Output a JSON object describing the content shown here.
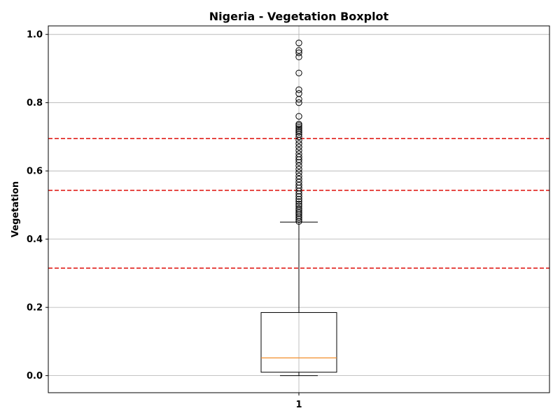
{
  "chart_data": {
    "type": "boxplot",
    "title": "Nigeria - Vegetation Boxplot",
    "xlabel": "",
    "ylabel": "Vegetation",
    "categories": [
      "1"
    ],
    "ylim": [
      -0.05,
      1.025
    ],
    "yticks": [
      0.0,
      0.2,
      0.4,
      0.6,
      0.8,
      1.0
    ],
    "ytick_labels": [
      "0.0",
      "0.2",
      "0.4",
      "0.6",
      "0.8",
      "1.0"
    ],
    "grid": true,
    "box": {
      "whisker_low": 0.0,
      "q1": 0.01,
      "median": 0.052,
      "q3": 0.185,
      "whisker_high": 0.45
    },
    "outliers": [
      0.452,
      0.458,
      0.463,
      0.468,
      0.474,
      0.479,
      0.485,
      0.49,
      0.497,
      0.503,
      0.51,
      0.517,
      0.525,
      0.533,
      0.541,
      0.55,
      0.558,
      0.567,
      0.576,
      0.585,
      0.595,
      0.605,
      0.615,
      0.625,
      0.633,
      0.641,
      0.65,
      0.66,
      0.67,
      0.68,
      0.69,
      0.7,
      0.707,
      0.713,
      0.718,
      0.723,
      0.728,
      0.733,
      0.737,
      0.76,
      0.8,
      0.81,
      0.827,
      0.838,
      0.887,
      0.934,
      0.946,
      0.953,
      0.975
    ],
    "reference_lines": [
      {
        "y": 0.315,
        "color": "#e0201c",
        "style": "dashed"
      },
      {
        "y": 0.543,
        "color": "#e0201c",
        "style": "dashed"
      },
      {
        "y": 0.695,
        "color": "#e0201c",
        "style": "dashed"
      }
    ],
    "colors": {
      "median": "#f28c28",
      "box": "#000000",
      "grid": "#b0b0b0",
      "reference": "#e0201c"
    }
  }
}
